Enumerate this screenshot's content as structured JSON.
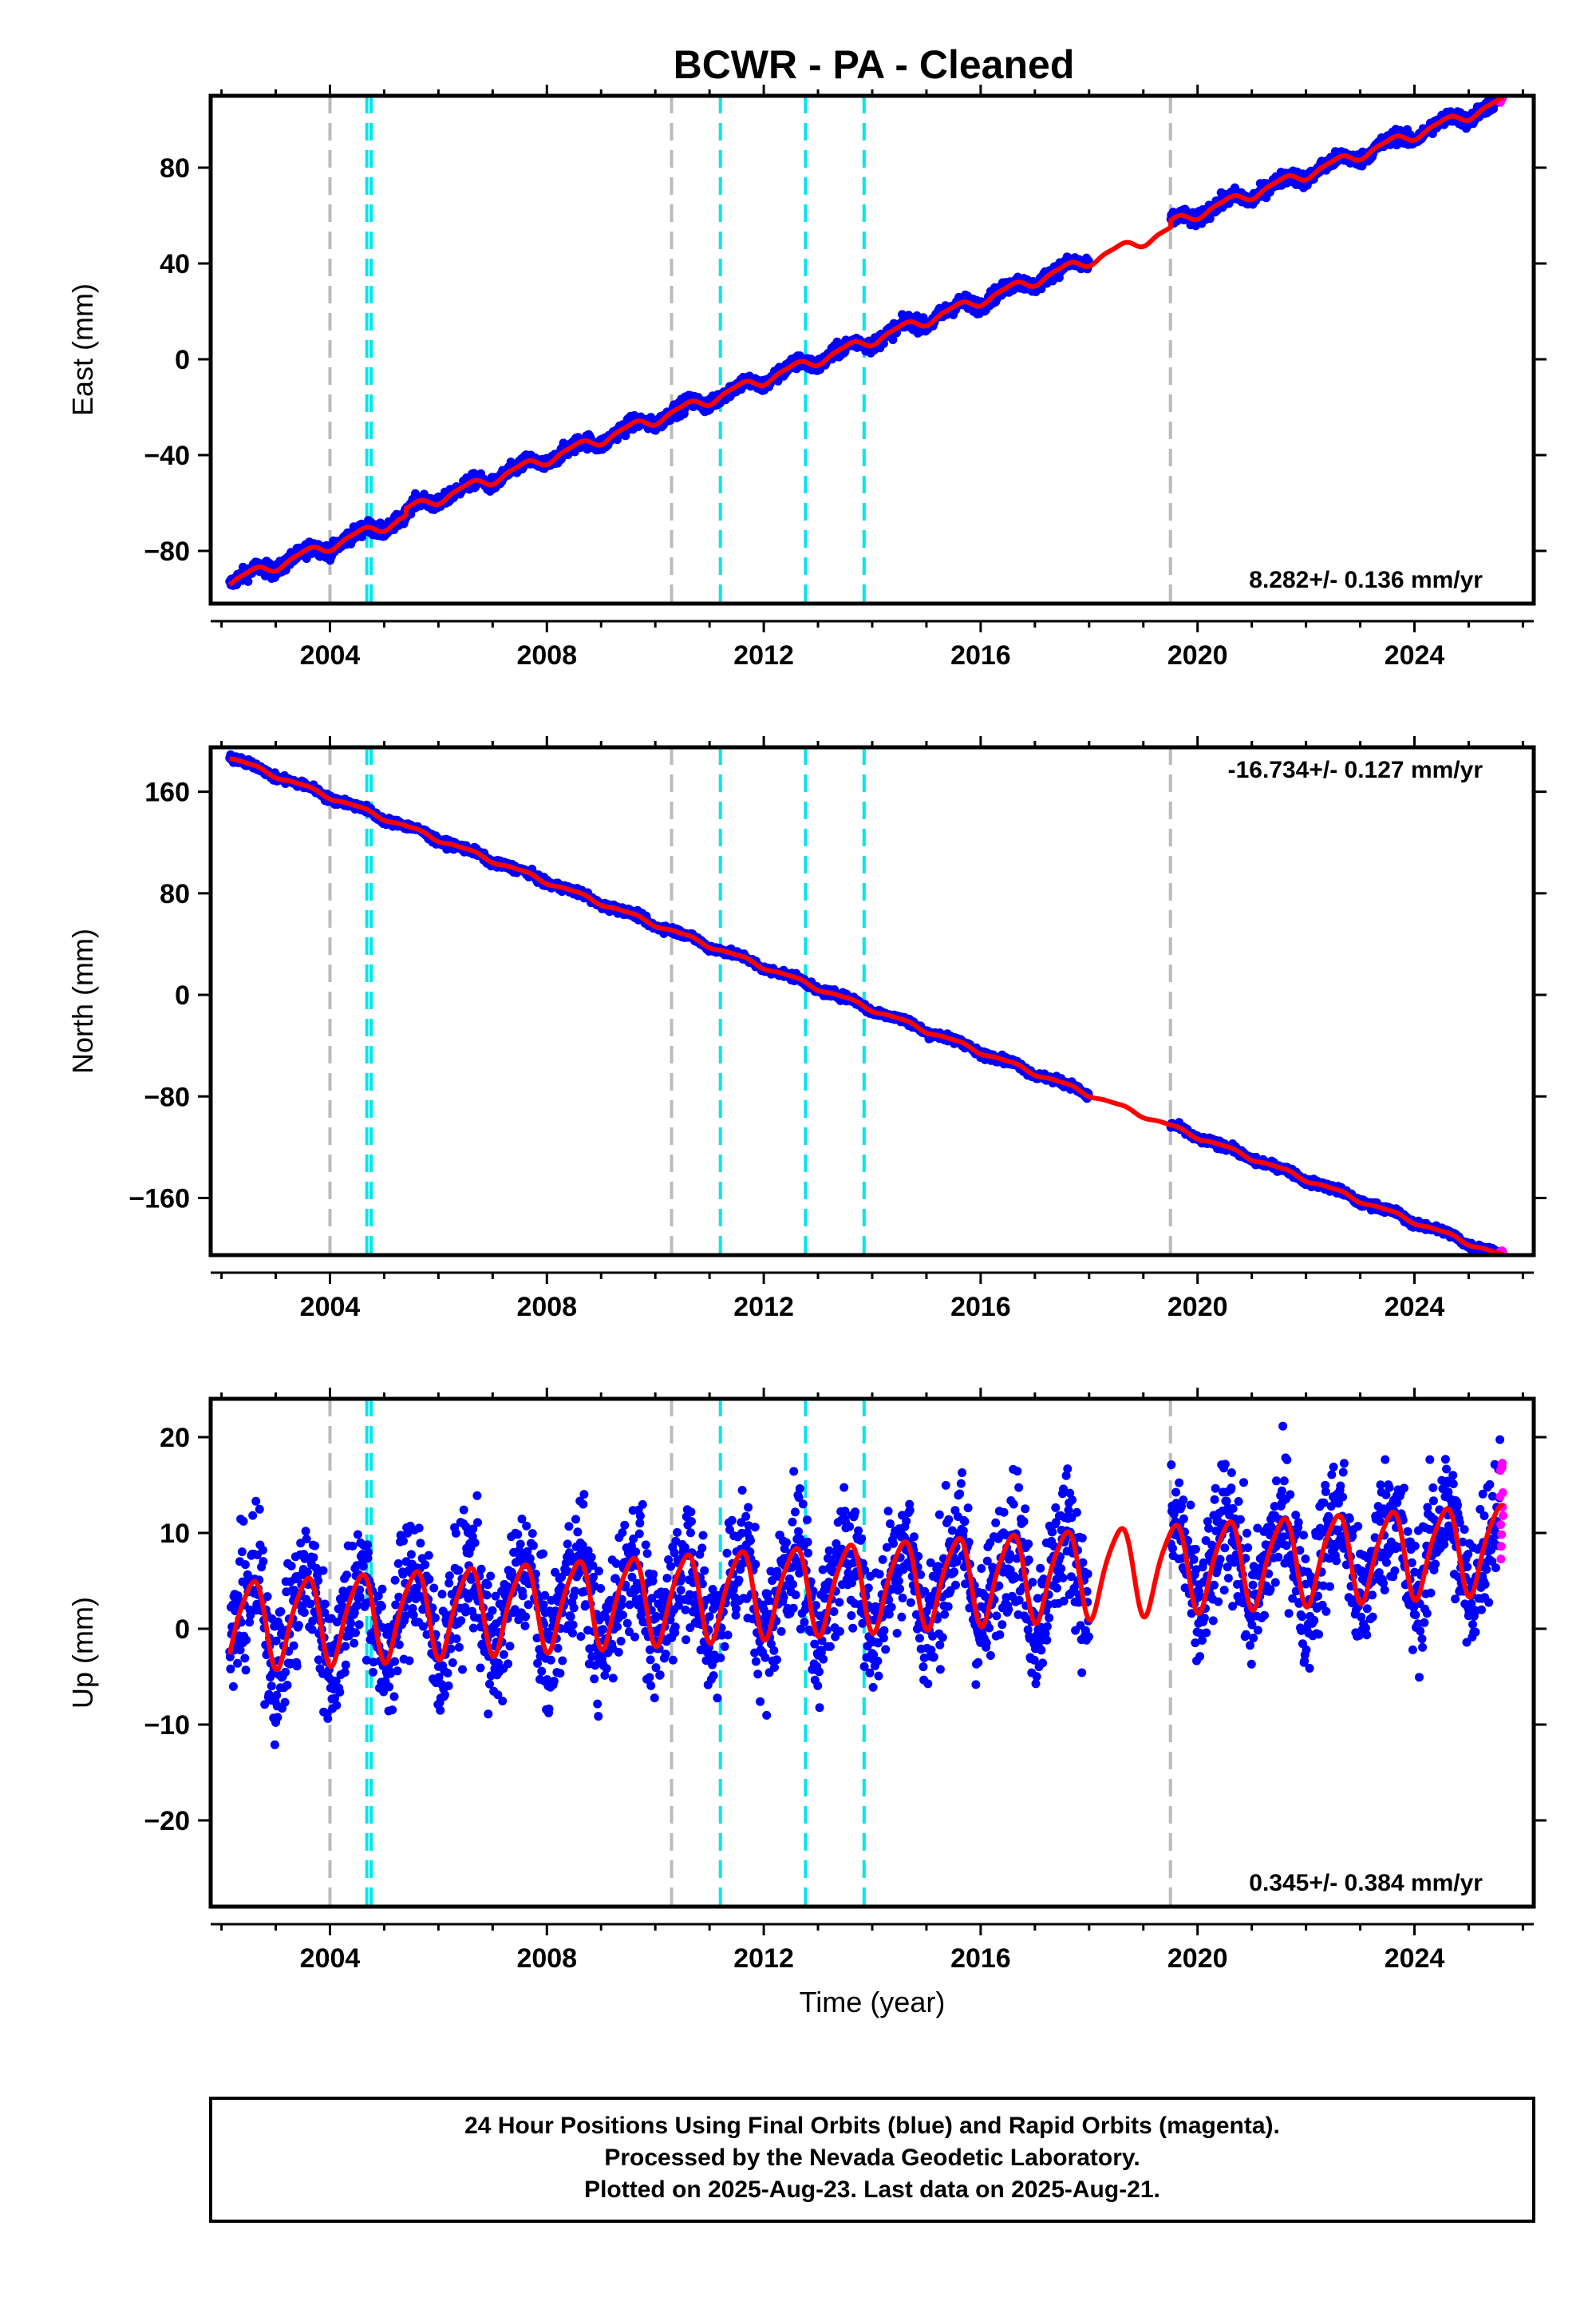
{
  "title": "BCWR  - PA - Cleaned",
  "footer": {
    "lines": [
      "24 Hour Positions Using Final Orbits (blue) and Rapid Orbits (magenta).",
      "Processed by the Nevada Geodetic Laboratory.",
      "Plotted on 2025-Aug-23. Last data on 2025-Aug-21."
    ]
  },
  "colors": {
    "final": "#0000ff",
    "rapid": "#ff00ff",
    "model": "#ff0000",
    "gray_line": "#bbbbbb",
    "cyan_line": "#00e5ee"
  },
  "chart_data": [
    {
      "type": "scatter",
      "component": "east",
      "xlabel": "",
      "ylabel": "East (mm)",
      "xlim": [
        2001.8,
        2026.2
      ],
      "ylim": [
        -102,
        110
      ],
      "x_ticks": [
        2004,
        2008,
        2012,
        2016,
        2020,
        2024
      ],
      "y_ticks": [
        -80,
        -40,
        0,
        40,
        80
      ],
      "data_start": 2002.15,
      "data_end": 2025.64,
      "gap": [
        2018.0,
        2019.5
      ],
      "rate_text": "8.282+/- 0.136 mm/yr",
      "rate_position": "bottom-right",
      "model": {
        "rate": 8.282,
        "value_2002": -93,
        "annual_amp": 2.0,
        "semiannual_amp": 0.6
      },
      "scatter_mm": 1.5,
      "offsets": [
        {
          "epoch": 2005.4,
          "size": 3
        },
        {
          "epoch": 2019.5,
          "size": 3
        }
      ],
      "rapid_points": 12,
      "series": [
        {
          "name": "Final Orbits",
          "color": "#0000ff"
        },
        {
          "name": "Rapid Orbits",
          "color": "#ff00ff"
        }
      ]
    },
    {
      "type": "scatter",
      "component": "north",
      "xlabel": "",
      "ylabel": "North (mm)",
      "xlim": [
        2001.8,
        2026.2
      ],
      "ylim": [
        -205,
        195
      ],
      "x_ticks": [
        2004,
        2008,
        2012,
        2016,
        2020,
        2024
      ],
      "y_ticks": [
        -160,
        -80,
        0,
        80,
        160
      ],
      "data_start": 2002.15,
      "data_end": 2025.64,
      "gap": [
        2018.0,
        2019.5
      ],
      "rate_text": "-16.734+/- 0.127 mm/yr",
      "rate_position": "top-right",
      "model": {
        "rate": -16.734,
        "value_2002": 187,
        "annual_amp": 1.5,
        "semiannual_amp": 0.5
      },
      "scatter_mm": 1.5,
      "offsets": [],
      "rapid_points": 12,
      "series": [
        {
          "name": "Final Orbits",
          "color": "#0000ff"
        },
        {
          "name": "Rapid Orbits",
          "color": "#ff00ff"
        }
      ]
    },
    {
      "type": "scatter",
      "component": "up",
      "xlabel": "Time (year)",
      "ylabel": "Up (mm)",
      "xlim": [
        2001.8,
        2026.2
      ],
      "ylim": [
        -29,
        24
      ],
      "x_ticks": [
        2004,
        2008,
        2012,
        2016,
        2020,
        2024
      ],
      "y_ticks": [
        -20,
        -10,
        0,
        10,
        20
      ],
      "data_start": 2002.15,
      "data_end": 2025.64,
      "gap": [
        2018.0,
        2019.5
      ],
      "rate_text": "0.345+/- 0.384 mm/yr",
      "rate_position": "bottom-right",
      "model": {
        "rate": 0.345,
        "value_2002": 0.5,
        "annual_amp": 4.5,
        "semiannual_amp": 0.8
      },
      "scatter_mm": 3.5,
      "offsets": [],
      "rapid_points": 12,
      "series": [
        {
          "name": "Final Orbits",
          "color": "#0000ff"
        },
        {
          "name": "Rapid Orbits",
          "color": "#ff00ff"
        }
      ]
    }
  ],
  "vertical_lines": {
    "gray_dashed": [
      2004.0,
      2010.3,
      2019.5
    ],
    "cyan_dashed": [
      2004.68,
      2004.76,
      2011.2,
      2012.77,
      2013.85
    ]
  }
}
